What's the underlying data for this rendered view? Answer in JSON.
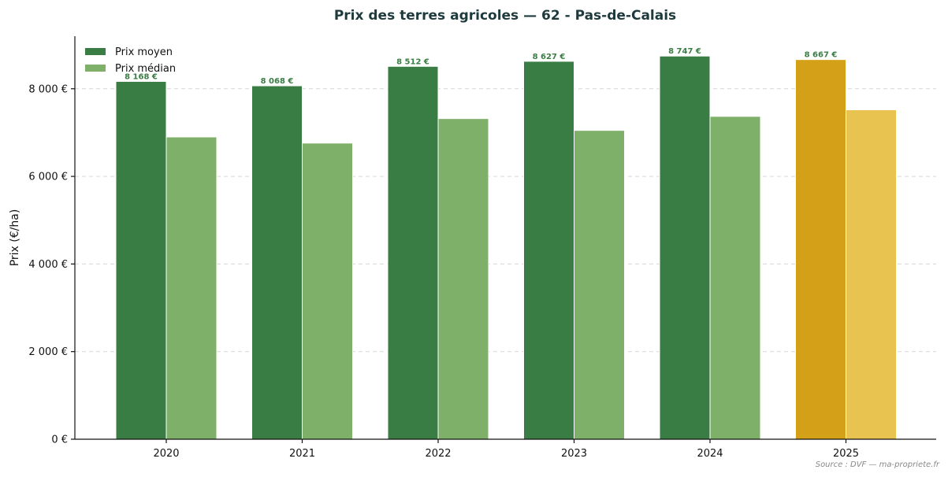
{
  "chart_data": {
    "type": "bar",
    "title": "Prix des terres agricoles — 62 - Pas-de-Calais",
    "ylabel": "Prix (€/ha)",
    "xlabel": "",
    "categories": [
      "2020",
      "2021",
      "2022",
      "2023",
      "2024",
      "2025"
    ],
    "series": [
      {
        "name": "Prix moyen",
        "color": "#3a7d44",
        "values": [
          8168,
          8068,
          8512,
          8627,
          8747,
          8667
        ],
        "data_labels": [
          "8 168 €",
          "8 068 €",
          "8 512 €",
          "8 627 €",
          "8 747 €",
          "8 667 €"
        ]
      },
      {
        "name": "Prix médian",
        "color": "#7fb06a",
        "values": [
          6900,
          6760,
          7320,
          7050,
          7370,
          7520
        ]
      }
    ],
    "highlight": {
      "category": "2025",
      "colors": [
        "#d4a017",
        "#e8c350"
      ]
    },
    "ylim": [
      0,
      9200
    ],
    "yticks": [
      0,
      2000,
      4000,
      6000,
      8000
    ],
    "ytick_labels": [
      "0 €",
      "2 000 €",
      "4 000 €",
      "6 000 €",
      "8 000 €"
    ],
    "grid": true,
    "legend_position": "top-left"
  },
  "source": "Source : DVF — ma-propriete.fr"
}
